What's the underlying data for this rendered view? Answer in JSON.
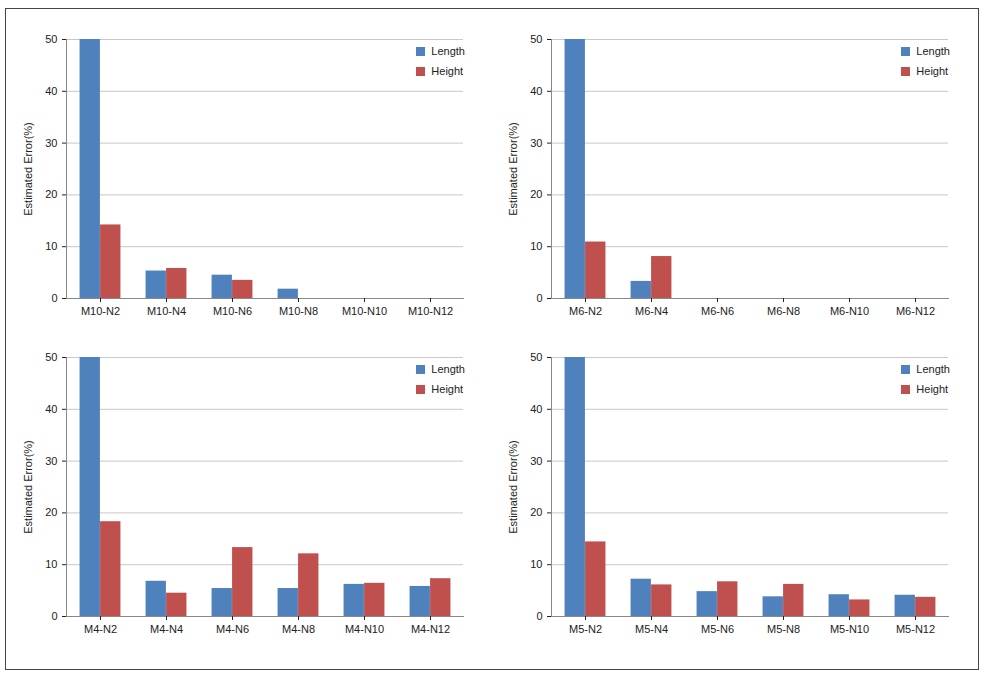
{
  "chart_data": [
    {
      "type": "bar",
      "ylabel": "Estimated Error(%)",
      "categories": [
        "M10-N2",
        "M10-N4",
        "M10-N6",
        "M10-N8",
        "M10-N10",
        "M10-N12"
      ],
      "series": [
        {
          "name": "Length",
          "color": "#4f81bd",
          "values": [
            50,
            5.3,
            4.5,
            1.8,
            0,
            0
          ]
        },
        {
          "name": "Height",
          "color": "#c0504d",
          "values": [
            14.2,
            5.8,
            3.5,
            0,
            0,
            0
          ]
        }
      ],
      "ylim": [
        0,
        50
      ],
      "yticks": [
        0,
        10,
        20,
        30,
        40,
        50
      ],
      "grid": true,
      "legend": "top-right"
    },
    {
      "type": "bar",
      "ylabel": "Estimated Error(%)",
      "categories": [
        "M6-N2",
        "M6-N4",
        "M6-N6",
        "M6-N8",
        "M6-N10",
        "M6-N12"
      ],
      "series": [
        {
          "name": "Length",
          "color": "#4f81bd",
          "values": [
            50,
            3.3,
            0,
            0,
            0,
            0
          ]
        },
        {
          "name": "Height",
          "color": "#c0504d",
          "values": [
            10.9,
            8.1,
            0,
            0,
            0,
            0
          ]
        }
      ],
      "ylim": [
        0,
        50
      ],
      "yticks": [
        0,
        10,
        20,
        30,
        40,
        50
      ],
      "grid": true,
      "legend": "top-right"
    },
    {
      "type": "bar",
      "ylabel": "Estimated Error(%)",
      "categories": [
        "M4-N2",
        "M4-N4",
        "M4-N6",
        "M4-N8",
        "M4-N10",
        "M4-N12"
      ],
      "series": [
        {
          "name": "Length",
          "color": "#4f81bd",
          "values": [
            50,
            6.8,
            5.4,
            5.4,
            6.2,
            5.8
          ]
        },
        {
          "name": "Height",
          "color": "#c0504d",
          "values": [
            18.3,
            4.5,
            13.3,
            12.1,
            6.4,
            7.3
          ]
        }
      ],
      "ylim": [
        0,
        50
      ],
      "yticks": [
        0,
        10,
        20,
        30,
        40,
        50
      ],
      "grid": true,
      "legend": "top-right"
    },
    {
      "type": "bar",
      "ylabel": "Estimated Error(%)",
      "categories": [
        "M5-N2",
        "M5-N4",
        "M5-N6",
        "M5-N8",
        "M5-N10",
        "M5-N12"
      ],
      "series": [
        {
          "name": "Length",
          "color": "#4f81bd",
          "values": [
            50,
            7.2,
            4.8,
            3.8,
            4.2,
            4.1
          ]
        },
        {
          "name": "Height",
          "color": "#c0504d",
          "values": [
            14.4,
            6.1,
            6.7,
            6.2,
            3.2,
            3.7
          ]
        }
      ],
      "ylim": [
        0,
        50
      ],
      "yticks": [
        0,
        10,
        20,
        30,
        40,
        50
      ],
      "grid": true,
      "legend": "top-right"
    }
  ]
}
